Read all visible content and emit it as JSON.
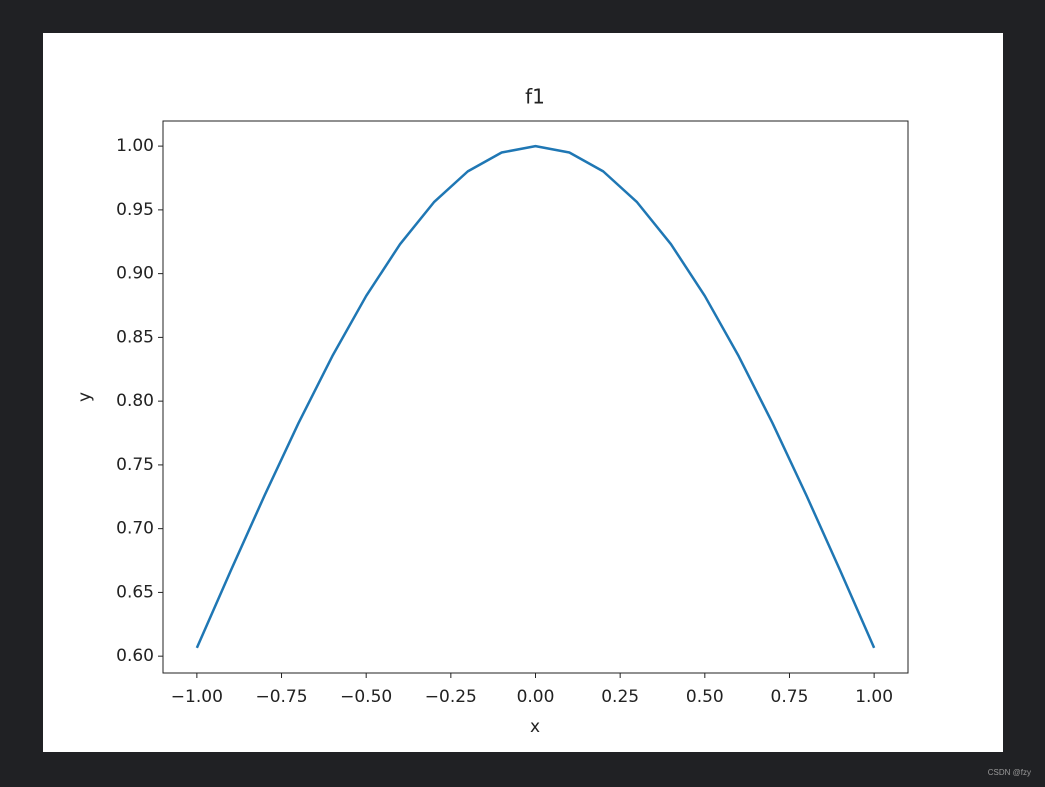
{
  "chart_data": {
    "type": "line",
    "title": "f1",
    "x_label": "x",
    "y_label": "y",
    "x": [
      -1.0,
      -0.9,
      -0.8,
      -0.7,
      -0.6,
      -0.5,
      -0.4,
      -0.3,
      -0.2,
      -0.1,
      0.0,
      0.1,
      0.2,
      0.3,
      0.4,
      0.5,
      0.6,
      0.7,
      0.8,
      0.9,
      1.0
    ],
    "series": [
      {
        "color": "#1f77b4",
        "values": [
          0.6065,
          0.667,
          0.7261,
          0.7827,
          0.8353,
          0.8825,
          0.9231,
          0.956,
          0.9802,
          0.995,
          1.0,
          0.995,
          0.9802,
          0.956,
          0.9231,
          0.8825,
          0.8353,
          0.7827,
          0.7261,
          0.667,
          0.6065
        ]
      }
    ],
    "xlim": [
      -1.1,
      1.1
    ],
    "ylim": [
      0.5868,
      1.0197
    ],
    "xticks": [
      {
        "value": -1.0,
        "label": "−1.00"
      },
      {
        "value": -0.75,
        "label": "−0.75"
      },
      {
        "value": -0.5,
        "label": "−0.50"
      },
      {
        "value": -0.25,
        "label": "−0.25"
      },
      {
        "value": 0.0,
        "label": "0.00"
      },
      {
        "value": 0.25,
        "label": "0.25"
      },
      {
        "value": 0.5,
        "label": "0.50"
      },
      {
        "value": 0.75,
        "label": "0.75"
      },
      {
        "value": 1.0,
        "label": "1.00"
      }
    ],
    "yticks": [
      {
        "value": 0.6,
        "label": "0.60"
      },
      {
        "value": 0.65,
        "label": "0.65"
      },
      {
        "value": 0.7,
        "label": "0.70"
      },
      {
        "value": 0.75,
        "label": "0.75"
      },
      {
        "value": 0.8,
        "label": "0.80"
      },
      {
        "value": 0.85,
        "label": "0.85"
      },
      {
        "value": 0.9,
        "label": "0.90"
      },
      {
        "value": 0.95,
        "label": "0.95"
      },
      {
        "value": 1.0,
        "label": "1.00"
      }
    ],
    "grid": false
  },
  "watermark": "CSDN @fzy"
}
